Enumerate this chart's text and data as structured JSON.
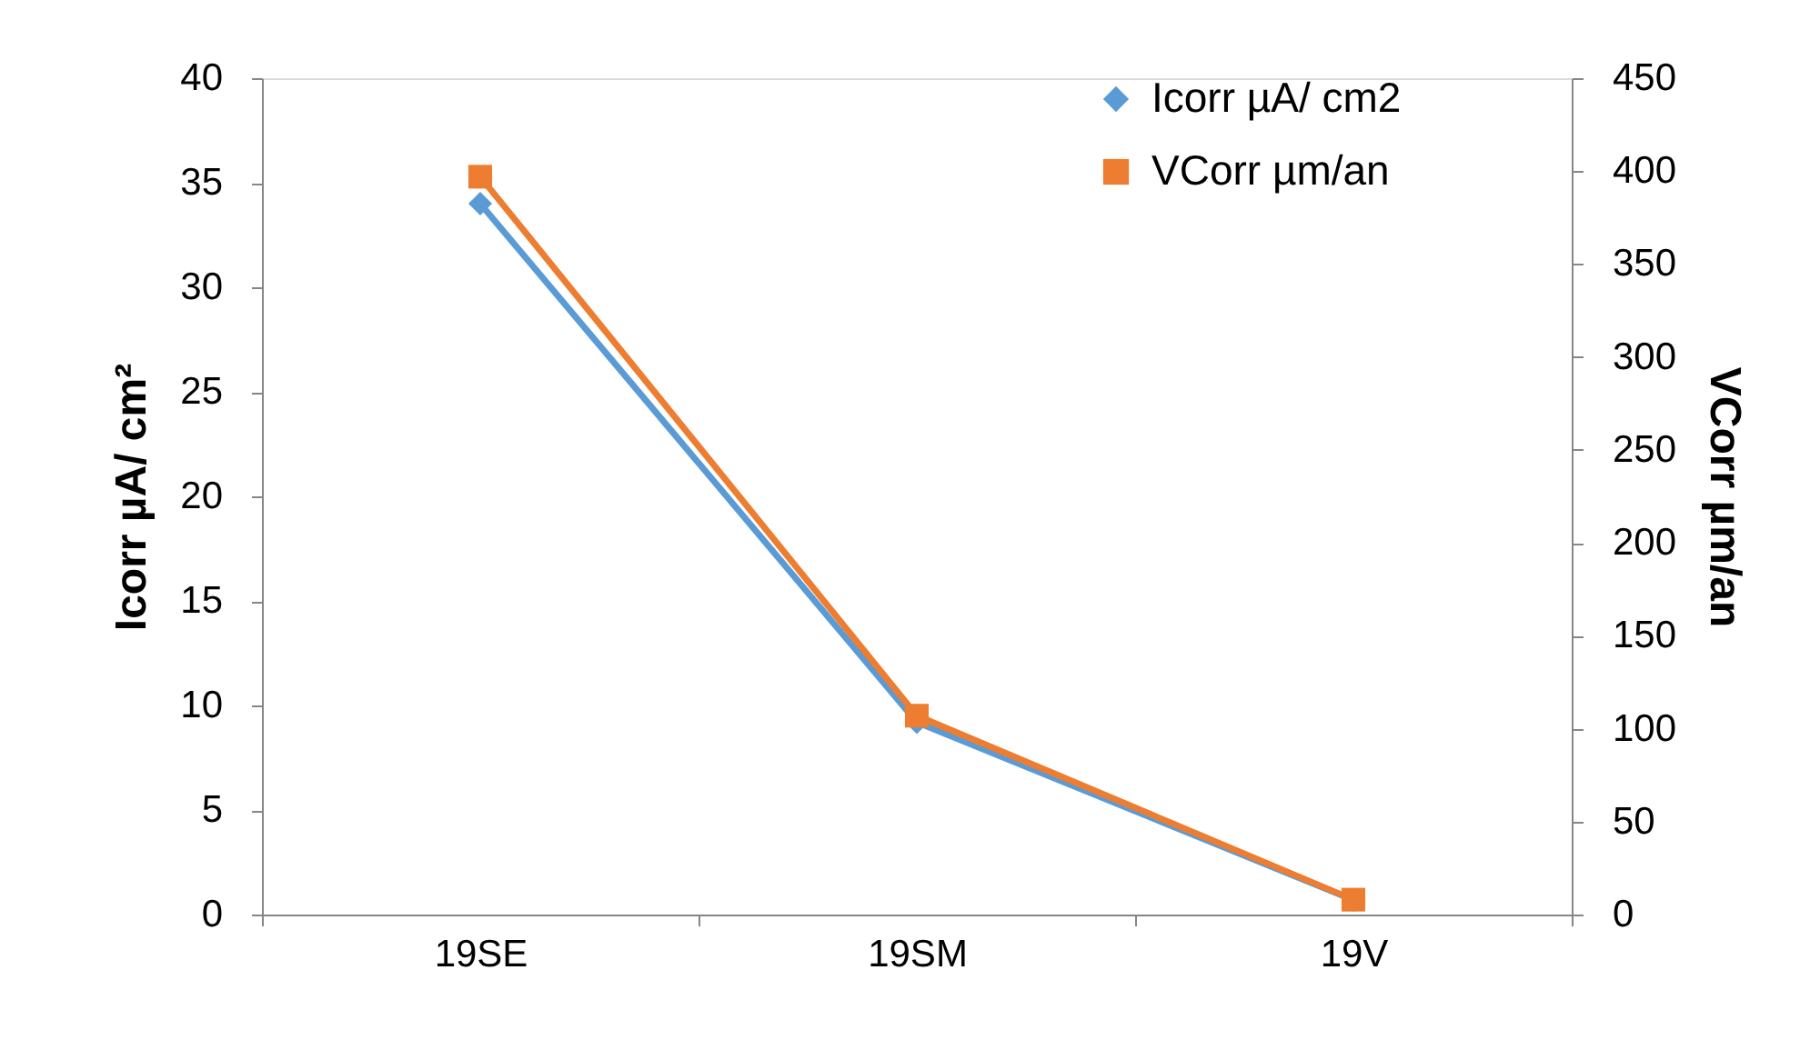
{
  "chart_data": {
    "type": "line",
    "categories": [
      "19SE",
      "19SM",
      "19V"
    ],
    "ylabel": "Icorr µA/ cm²",
    "y2label": "VCorr µm/an",
    "ylim": [
      0,
      40
    ],
    "yticks": [
      0,
      5,
      10,
      15,
      20,
      25,
      30,
      35,
      40
    ],
    "y2lim": [
      0,
      450
    ],
    "y2ticks": [
      0,
      50,
      100,
      150,
      200,
      250,
      300,
      350,
      400,
      450
    ],
    "grid": false,
    "legend": "top right",
    "series": [
      {
        "name": "Icorr µA/ cm2",
        "color": "#5b9bd5",
        "marker": "diamond",
        "values": [
          34,
          9.2,
          0.7
        ]
      },
      {
        "name": "VCorr µm/an",
        "color": "#ed7d31",
        "marker": "square",
        "axis": "y2",
        "values": [
          397,
          107,
          8
        ]
      }
    ]
  }
}
